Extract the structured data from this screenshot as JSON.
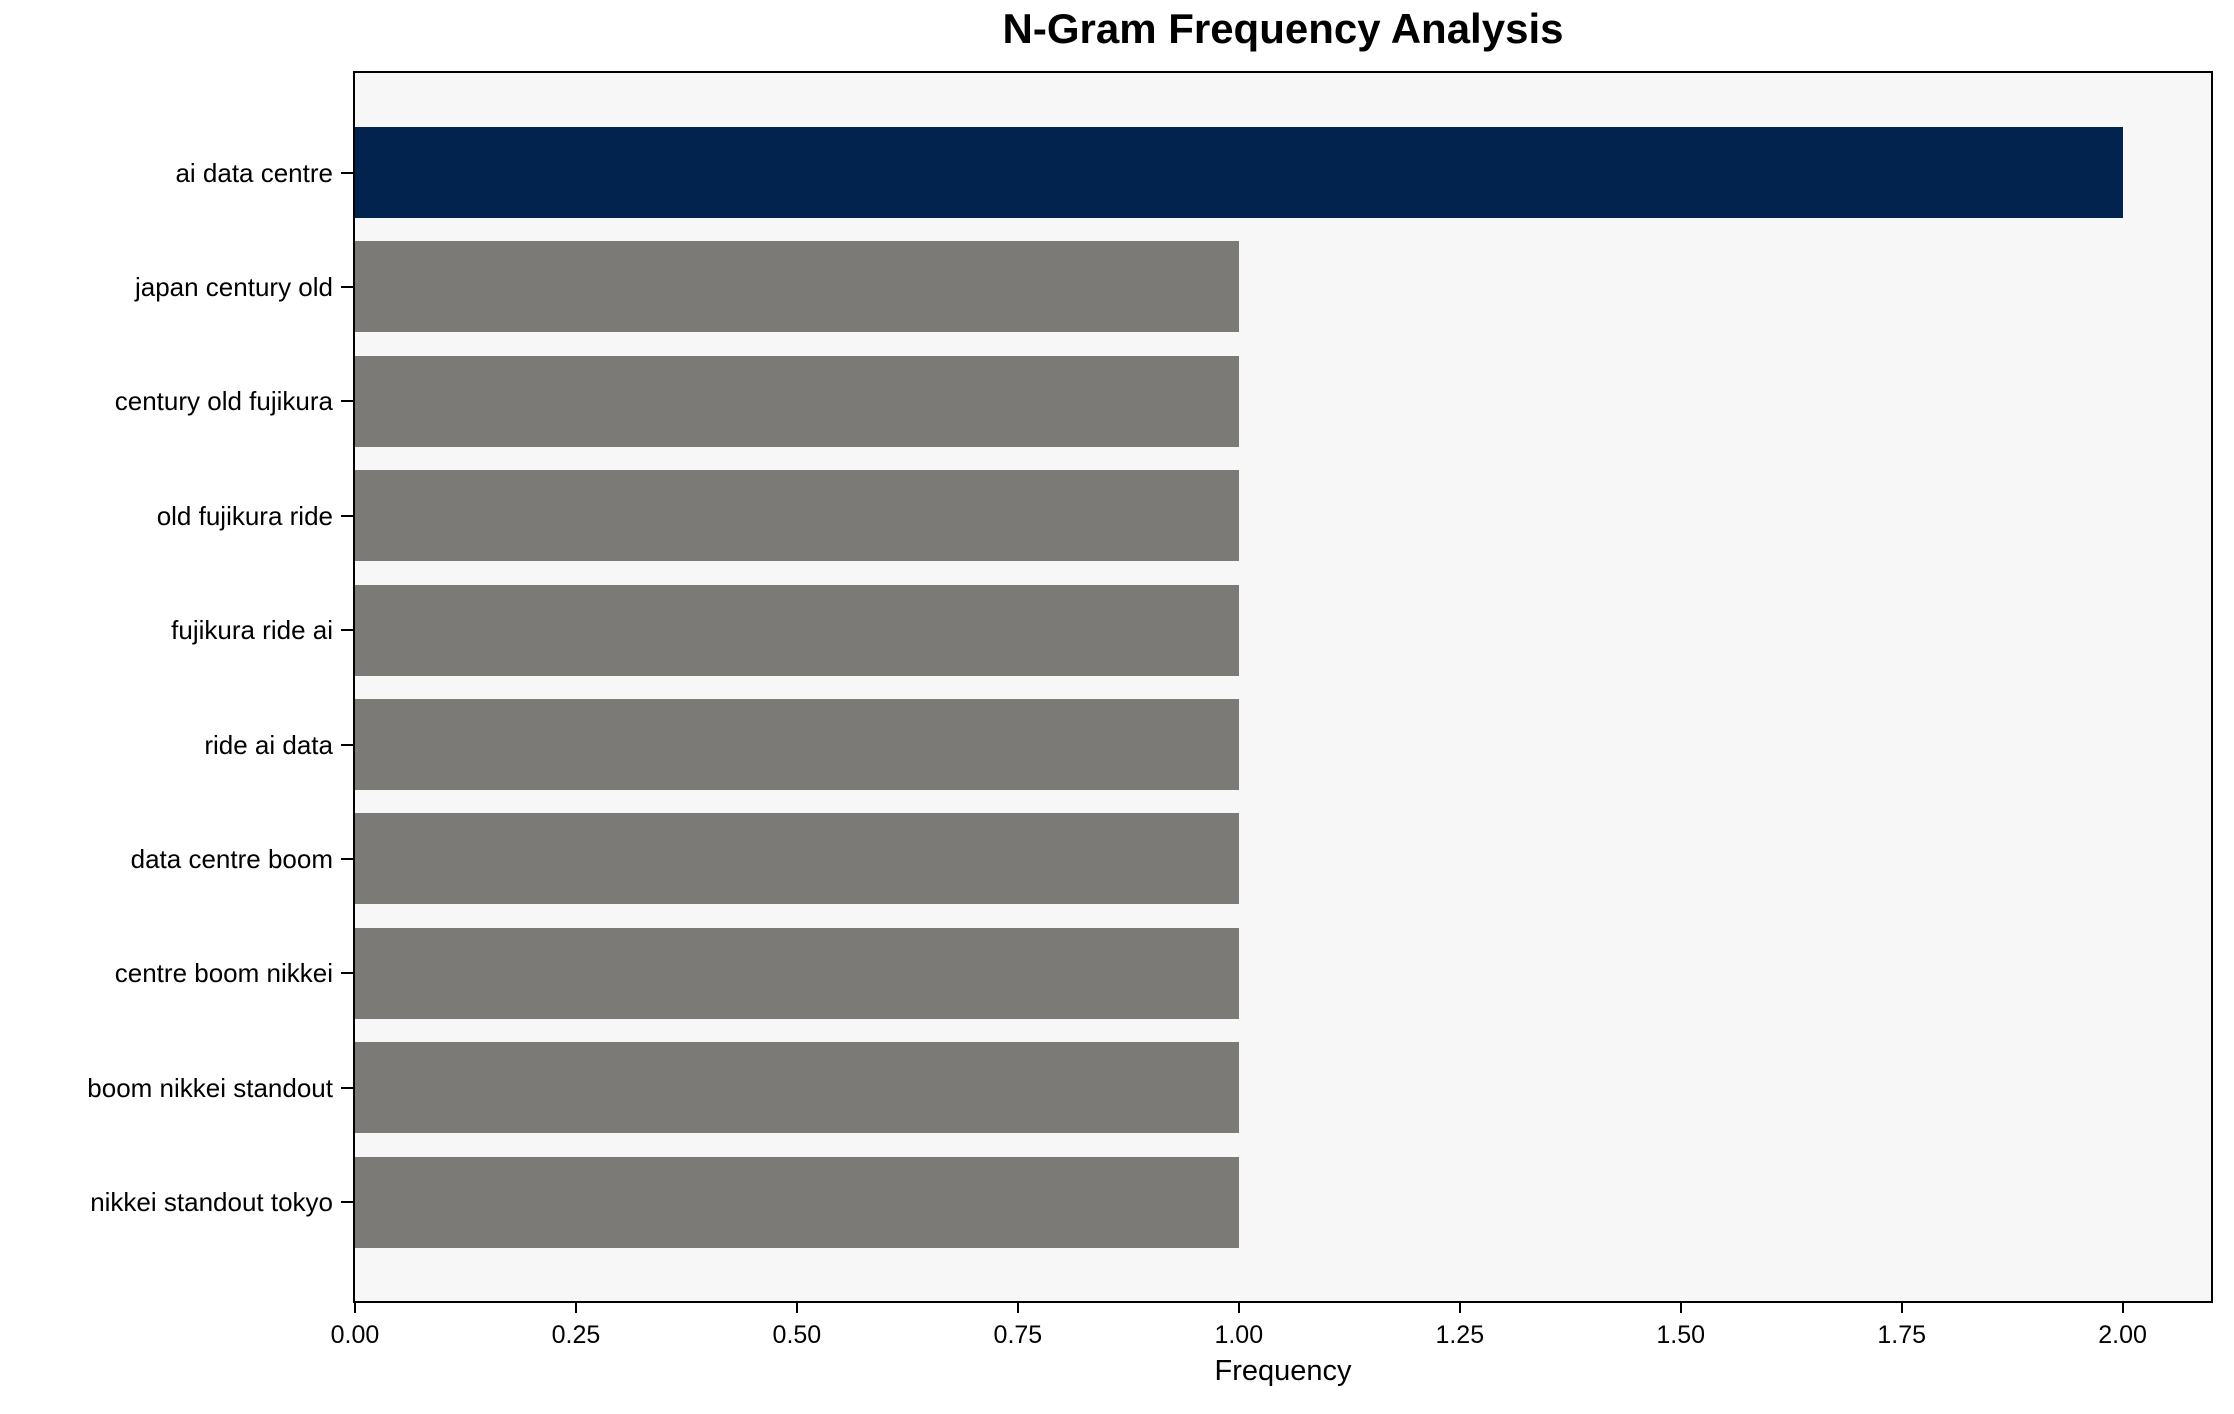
{
  "chart_data": {
    "type": "bar",
    "orientation": "horizontal",
    "title": "N-Gram Frequency Analysis",
    "xlabel": "Frequency",
    "ylabel": "",
    "categories": [
      "ai data centre",
      "japan century old",
      "century old fujikura",
      "old fujikura ride",
      "fujikura ride ai",
      "ride ai data",
      "data centre boom",
      "centre boom nikkei",
      "boom nikkei standout",
      "nikkei standout tokyo"
    ],
    "values": [
      2,
      1,
      1,
      1,
      1,
      1,
      1,
      1,
      1,
      1
    ],
    "bar_colors": [
      "#02234d",
      "#7b7a77",
      "#7b7a77",
      "#7b7a77",
      "#7b7a77",
      "#7b7a77",
      "#7b7a77",
      "#7b7a77",
      "#7b7a77",
      "#7b7a77"
    ],
    "xlim": [
      0,
      2.1
    ],
    "x_ticks": [
      {
        "value": 0.0,
        "label": "0.00"
      },
      {
        "value": 0.25,
        "label": "0.25"
      },
      {
        "value": 0.5,
        "label": "0.50"
      },
      {
        "value": 0.75,
        "label": "0.75"
      },
      {
        "value": 1.0,
        "label": "1.00"
      },
      {
        "value": 1.25,
        "label": "1.25"
      },
      {
        "value": 1.5,
        "label": "1.50"
      },
      {
        "value": 1.75,
        "label": "1.75"
      },
      {
        "value": 2.0,
        "label": "2.00"
      }
    ],
    "grid": false,
    "legend": false,
    "colors": {
      "highlight_bar": "#02234d",
      "default_bar": "#7b7a77",
      "plot_background": "#f7f7f7",
      "figure_background": "#ffffff",
      "spine": "#000000",
      "text": "#000000"
    }
  }
}
